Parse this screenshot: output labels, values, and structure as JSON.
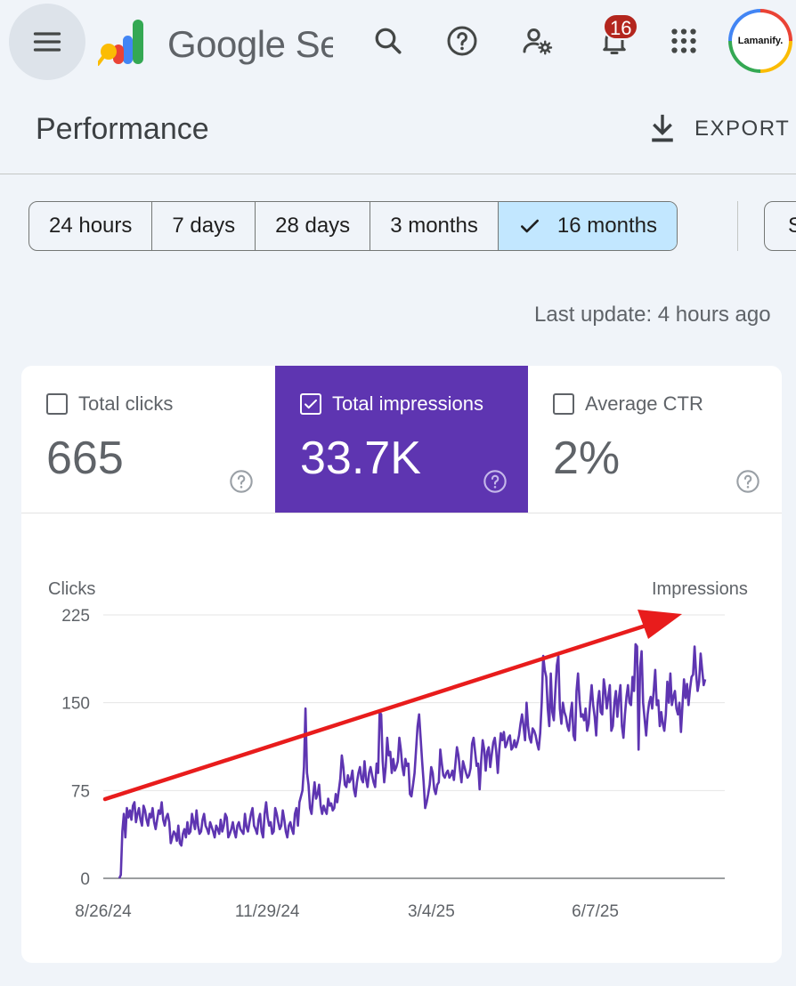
{
  "topbar": {
    "menu_icon": "hamburger-menu-icon",
    "product_title": "Google Search Console",
    "icons": [
      "search-icon",
      "help-icon",
      "manage-users-icon",
      "notifications-icon",
      "apps-grid-icon"
    ],
    "notification_count": "16",
    "avatar_text": "Lamanify."
  },
  "header": {
    "title": "Performance",
    "export_label": "EXPORT"
  },
  "ranges": {
    "options": [
      "24 hours",
      "7 days",
      "28 days",
      "3 months",
      "16 months"
    ],
    "selected": "16 months",
    "extra_chip_label": "S"
  },
  "last_update": "Last update: 4 hours ago",
  "metrics": [
    {
      "label": "Total clicks",
      "value": "665",
      "checked": false
    },
    {
      "label": "Total impressions",
      "value": "33.7K",
      "checked": true
    },
    {
      "label": "Average CTR",
      "value": "2%",
      "checked": false
    }
  ],
  "colors": {
    "selected_metric": "#5e35b1",
    "line": "#5e35b1",
    "annotation_arrow": "#e81c1c",
    "selected_chip": "#c2e7ff"
  },
  "chart_data": {
    "type": "line",
    "left_axis_title": "Clicks",
    "right_axis_title": "Impressions",
    "ylim": [
      0,
      225
    ],
    "y_ticks": [
      0,
      75,
      150,
      225
    ],
    "x_tick_labels": [
      "8/26/24",
      "11/29/24",
      "3/4/25",
      "6/7/25"
    ],
    "x_range": [
      "2024-08-26",
      "2025-08-21"
    ],
    "series": [
      {
        "values": [
          0,
          3,
          40,
          55,
          35,
          60,
          52,
          58,
          50,
          62,
          65,
          48,
          55,
          60,
          50,
          45,
          62,
          58,
          50,
          45,
          55,
          52,
          60,
          48,
          42,
          50,
          58,
          55,
          65,
          50,
          45,
          52,
          55,
          48,
          30,
          35,
          40,
          38,
          32,
          45,
          30,
          28,
          38,
          42,
          35,
          48,
          38,
          40,
          55,
          48,
          42,
          58,
          45,
          38,
          40,
          50,
          55,
          45,
          42,
          38,
          48,
          44,
          40,
          35,
          45,
          42,
          38,
          50,
          40,
          45,
          55,
          52,
          35,
          38,
          42,
          48,
          40,
          35,
          45,
          48,
          42,
          40,
          38,
          55,
          44,
          40,
          48,
          55,
          60,
          45,
          42,
          38,
          50,
          55,
          40,
          35,
          55,
          65,
          52,
          45,
          48,
          38,
          40,
          60,
          55,
          48,
          42,
          45,
          58,
          50,
          40,
          35,
          45,
          48,
          42,
          38,
          55,
          60,
          45,
          65,
          70,
          75,
          95,
          145,
          90,
          80,
          60,
          55,
          70,
          82,
          68,
          72,
          80,
          62,
          55,
          62,
          58,
          55,
          68,
          62,
          64,
          58,
          60,
          72,
          65,
          75,
          85,
          105,
          95,
          80,
          78,
          88,
          82,
          85,
          92,
          76,
          70,
          82,
          90,
          95,
          85,
          82,
          100,
          85,
          78,
          90,
          95,
          88,
          82,
          78,
          98,
          90,
          142,
          140,
          100,
          82,
          95,
          120,
          105,
          108,
          90,
          102,
          92,
          95,
          100,
          120,
          110,
          95,
          88,
          102,
          96,
          98,
          72,
          70,
          80,
          90,
          110,
          130,
          140,
          120,
          100,
          82,
          60,
          65,
          72,
          80,
          95,
          90,
          76,
          72,
          80,
          82,
          110,
          98,
          88,
          86,
          90,
          92,
          86,
          88,
          92,
          84,
          98,
          112,
          105,
          92,
          82,
          100,
          95,
          90,
          86,
          88,
          94,
          115,
          120,
          108,
          96,
          98,
          76,
          100,
          118,
          110,
          92,
          108,
          112,
          95,
          106,
          116,
          120,
          108,
          90,
          110,
          124,
          118,
          125,
          112,
          115,
          120,
          122,
          110,
          112,
          118,
          112,
          116,
          122,
          132,
          140,
          130,
          118,
          150,
          130,
          120,
          116,
          128,
          126,
          122,
          115,
          110,
          124,
          150,
          190,
          178,
          172,
          145,
          130,
          175,
          142,
          135,
          160,
          182,
          190,
          145,
          132,
          150,
          142,
          138,
          130,
          126,
          140,
          150,
          122,
          118,
          160,
          175,
          152,
          138,
          140,
          135,
          145,
          126,
          132,
          150,
          165,
          148,
          138,
          122,
          150,
          160,
          142,
          140,
          170,
          160,
          145,
          155,
          165,
          126,
          130,
          150,
          160,
          138,
          154,
          165,
          130,
          120,
          140,
          155,
          165,
          150,
          148,
          172,
          160,
          200,
          198,
          110,
          180,
          194,
          150,
          136,
          122,
          140,
          150,
          155,
          145,
          160,
          178,
          148,
          152,
          130,
          142,
          132,
          126,
          140,
          168,
          150,
          175,
          148,
          155,
          160,
          145,
          140,
          150,
          125,
          148,
          170,
          154,
          166,
          148,
          162,
          172,
          174,
          198,
          175,
          160,
          168,
          192,
          178,
          165,
          170
        ]
      }
    ],
    "annotation": "trend-arrow"
  }
}
